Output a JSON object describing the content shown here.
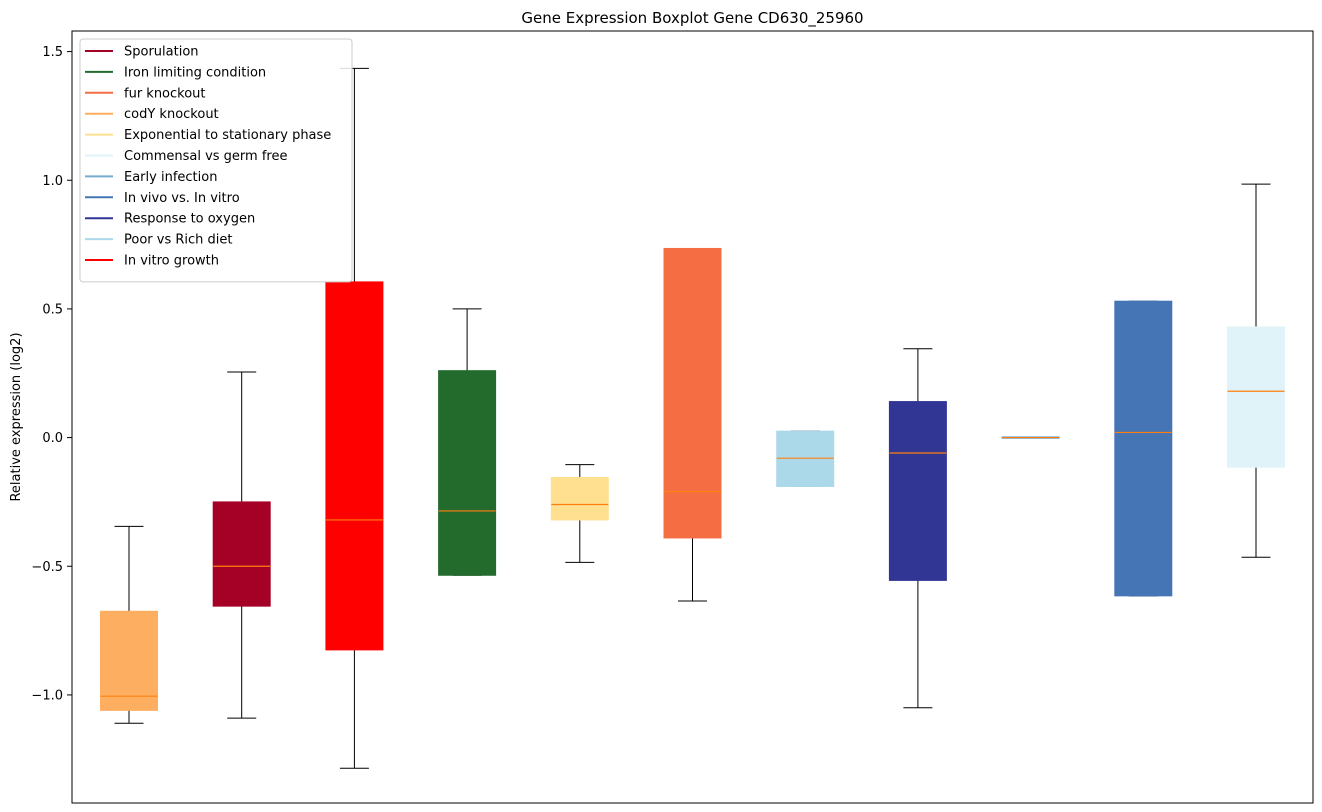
{
  "chart_data": {
    "type": "boxplot",
    "title": "Gene Expression Boxplot Gene CD630_25960",
    "xlabel": "",
    "ylabel": "Relative expression (log2)",
    "ylim": [
      -1.42,
      1.58
    ],
    "yticks": [
      -1.0,
      -0.5,
      0.0,
      0.5,
      1.0,
      1.5
    ],
    "ytick_labels": [
      "−1.0",
      "−0.5",
      "0.0",
      "0.5",
      "1.0",
      "1.5"
    ],
    "legend": {
      "placement": "top-left",
      "entries": [
        {
          "label": "Sporulation",
          "color": "#a50026"
        },
        {
          "label": "Iron limiting condition",
          "color": "#226b2d"
        },
        {
          "label": "fur knockout",
          "color": "#f46d43"
        },
        {
          "label": "codY knockout",
          "color": "#fdae61"
        },
        {
          "label": "Exponential to stationary phase",
          "color": "#fee090"
        },
        {
          "label": "Commensal vs germ free",
          "color": "#e0f3f8"
        },
        {
          "label": "Early infection",
          "color": "#74add1"
        },
        {
          "label": "In vivo vs. In vitro",
          "color": "#4575b4"
        },
        {
          "label": "Response to oxygen",
          "color": "#313695"
        },
        {
          "label": "Poor vs Rich diet",
          "color": "#abd9e9"
        },
        {
          "label": "In vitro growth",
          "color": "#ff0000"
        }
      ]
    },
    "boxes": [
      {
        "color": "#fdae61",
        "whisker_low": -1.11,
        "q1": -1.06,
        "median": -1.005,
        "q3": -0.675,
        "whisker_high": -0.345
      },
      {
        "color": "#a50026",
        "whisker_low": -1.09,
        "q1": -0.655,
        "median": -0.5,
        "q3": -0.25,
        "whisker_high": 0.255
      },
      {
        "color": "#ff0000",
        "whisker_low": -1.285,
        "q1": -0.825,
        "median": -0.32,
        "q3": 0.605,
        "whisker_high": 1.435
      },
      {
        "color": "#226b2d",
        "whisker_low": -0.535,
        "q1": -0.535,
        "median": -0.285,
        "q3": 0.26,
        "whisker_high": 0.5
      },
      {
        "color": "#fee090",
        "whisker_low": -0.485,
        "q1": -0.32,
        "median": -0.26,
        "q3": -0.155,
        "whisker_high": -0.105
      },
      {
        "color": "#f46d43",
        "whisker_low": -0.635,
        "q1": -0.39,
        "median": -0.21,
        "q3": 0.735,
        "whisker_high": 0.735
      },
      {
        "color": "#abd9e9",
        "whisker_low": -0.19,
        "q1": -0.19,
        "median": -0.08,
        "q3": 0.025,
        "whisker_high": 0.025
      },
      {
        "color": "#313695",
        "whisker_low": -1.05,
        "q1": -0.555,
        "median": -0.06,
        "q3": 0.14,
        "whisker_high": 0.345
      },
      {
        "color": "#74add1",
        "whisker_low": 0.0,
        "q1": 0.0,
        "median": 0.0,
        "q3": 0.0,
        "whisker_high": 0.0
      },
      {
        "color": "#4575b4",
        "whisker_low": -0.615,
        "q1": -0.615,
        "median": 0.02,
        "q3": 0.53,
        "whisker_high": 0.53
      },
      {
        "color": "#e0f3f8",
        "whisker_low": -0.465,
        "q1": -0.115,
        "median": 0.18,
        "q3": 0.43,
        "whisker_high": 0.985
      }
    ],
    "median_color": "#ff7f0e",
    "grid": false
  }
}
